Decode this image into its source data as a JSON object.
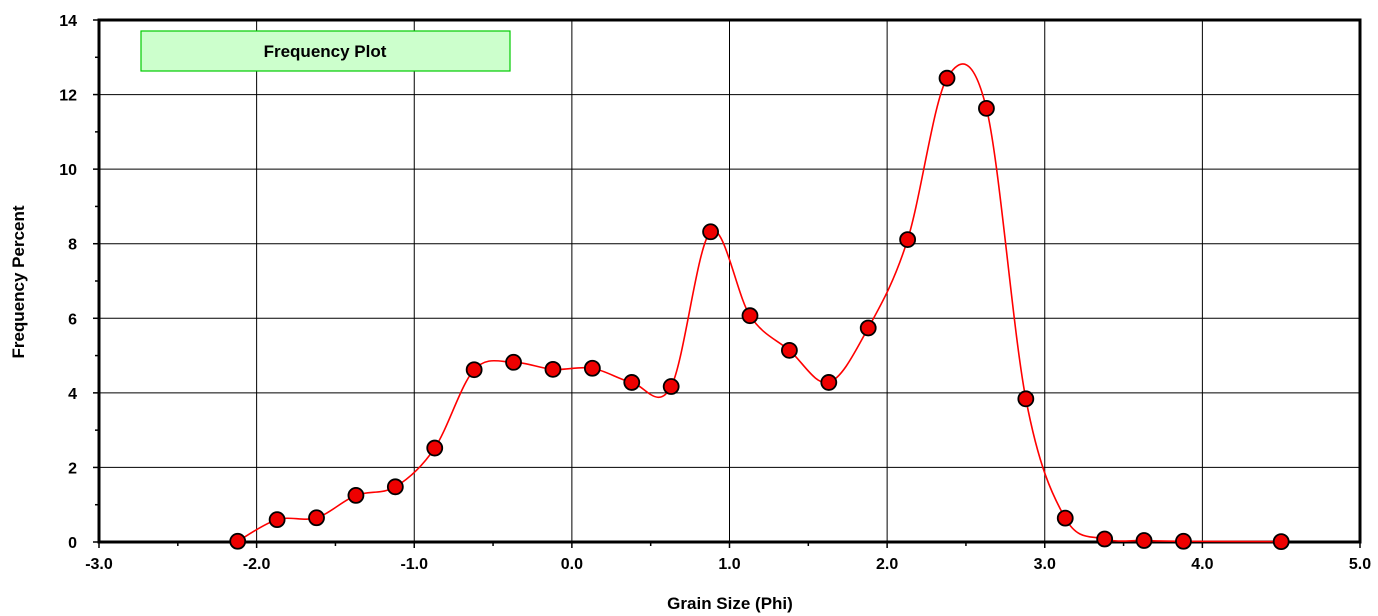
{
  "chart_data": {
    "type": "line",
    "title": "",
    "legend_label": "Frequency Plot",
    "xlabel": "Grain Size (Phi)",
    "ylabel": "Frequency Percent",
    "xlim": [
      -3.0,
      5.0
    ],
    "ylim": [
      0,
      14
    ],
    "x_ticks": [
      -3.0,
      -2.0,
      -1.0,
      0.0,
      1.0,
      2.0,
      3.0,
      4.0,
      5.0
    ],
    "x_tick_labels": [
      "-3.0",
      "-2.0",
      "-1.0",
      "0.0",
      "1.0",
      "2.0",
      "3.0",
      "4.0",
      "5.0"
    ],
    "y_ticks": [
      0,
      2,
      4,
      6,
      8,
      10,
      12,
      14
    ],
    "y_tick_labels": [
      "0",
      "2",
      "4",
      "6",
      "8",
      "10",
      "12",
      "14"
    ],
    "grid": true,
    "legend_position": "top-left",
    "colors": {
      "line": "#ff0000",
      "marker_fill": "#ee0000",
      "marker_edge": "#000000",
      "legend_bg": "#ccffcc",
      "legend_border": "#00cc00"
    },
    "series": [
      {
        "x": [
          -2.12,
          -1.87,
          -1.62,
          -1.37,
          -1.12,
          -0.87,
          -0.62,
          -0.37,
          -0.12,
          0.13,
          0.38,
          0.63,
          0.88,
          1.13,
          1.38,
          1.63,
          1.88,
          2.13,
          2.38,
          2.63,
          2.88,
          3.13,
          3.38,
          3.63,
          3.88,
          4.5
        ],
        "y": [
          0.02,
          0.6,
          0.65,
          1.25,
          1.48,
          2.52,
          4.62,
          4.82,
          4.63,
          4.66,
          4.28,
          4.17,
          8.32,
          6.07,
          5.14,
          4.28,
          5.74,
          8.11,
          12.44,
          11.63,
          3.84,
          0.64,
          0.08,
          0.04,
          0.02,
          0.01
        ]
      }
    ]
  }
}
